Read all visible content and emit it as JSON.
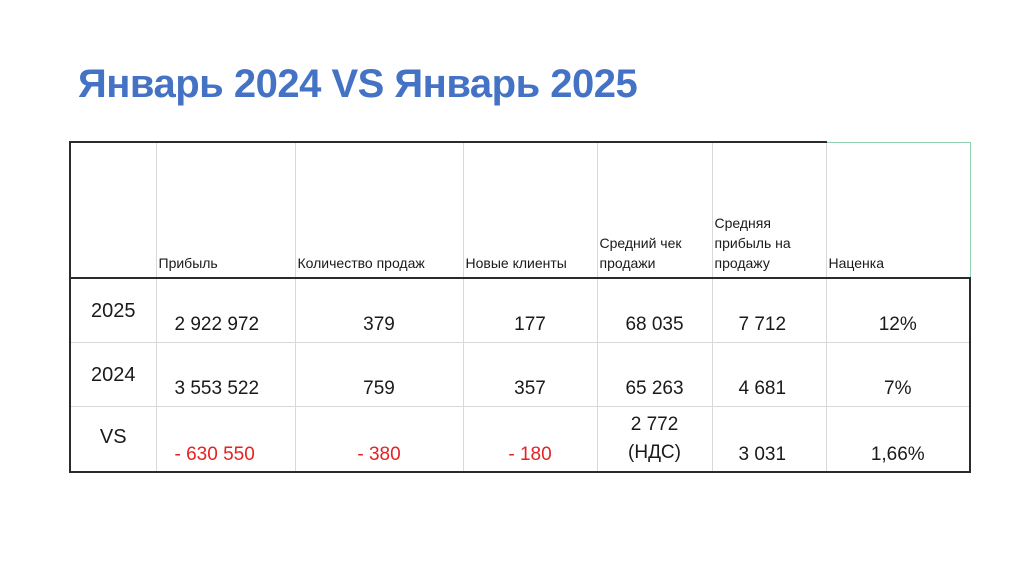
{
  "slide": {
    "title": "Январь 2024 VS Январь 2025"
  },
  "table": {
    "headers": [
      "",
      "Прибыль",
      "Количество продаж",
      "Новые клиенты",
      "Средний чек продажи",
      "Средняя прибыль на продажу",
      "Наценка"
    ],
    "rows": [
      {
        "label": "2025",
        "profit": "2 922 972",
        "sales_count": "379",
        "new_clients": "177",
        "avg_check": "68 035",
        "avg_profit": "7 712",
        "markup": "12%"
      },
      {
        "label": "2024",
        "profit": "3 553 522",
        "sales_count": "759",
        "new_clients": "357",
        "avg_check": "65 263",
        "avg_profit": "4 681",
        "markup": "7%"
      },
      {
        "label": "VS",
        "profit": "- 630 550",
        "sales_count": "- 380",
        "new_clients": "- 180",
        "avg_check_line1": "2 772",
        "avg_check_line2": "(НДС)",
        "avg_profit": "3 031",
        "markup": "1,66%"
      }
    ],
    "colors": {
      "title": "#4472c4",
      "negative": "#e52222"
    }
  }
}
